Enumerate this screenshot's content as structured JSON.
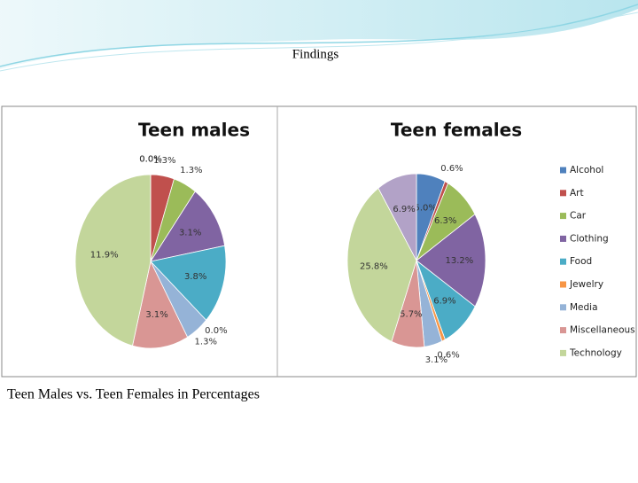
{
  "slide": {
    "title": "Findings",
    "caption": "Teen Males vs. Teen Females in Percentages"
  },
  "chart_data": [
    {
      "type": "pie",
      "title": "Teen males",
      "categories": [
        "Alcohol",
        "Art",
        "Car",
        "Clothing",
        "Food",
        "Jewelry",
        "Media",
        "Miscellaneous",
        "Technology",
        null
      ],
      "values": [
        0.0,
        1.3,
        1.3,
        3.1,
        3.8,
        0.0,
        1.3,
        3.1,
        11.9,
        0.0
      ],
      "value_labels": [
        "0.0%",
        "1.3%",
        "1.3%",
        "3.1%",
        "3.8%",
        "0.0%",
        "1.3%",
        "3.1%",
        "11.9%",
        "0.0%"
      ],
      "colors": [
        "#4f81bd",
        "#c0504d",
        "#9bbb59",
        "#8064a2",
        "#4bacc6",
        "#f79646",
        "#95b3d7",
        "#d99694",
        "#c3d69b",
        "#b2a2c7"
      ]
    },
    {
      "type": "pie",
      "title": "Teen females",
      "categories": [
        "Alcohol",
        "Art",
        "Car",
        "Clothing",
        "Food",
        "Jewelry",
        "Media",
        "Miscellaneous",
        "Technology",
        null
      ],
      "values": [
        5.0,
        0.6,
        6.3,
        13.2,
        6.9,
        0.6,
        3.1,
        5.7,
        25.8,
        6.9
      ],
      "value_labels": [
        "5.0%",
        "0.6%",
        "6.3%",
        "13.2%",
        "6.9%",
        "0.6%",
        "3.1%",
        "5.7%",
        "25.8%",
        "6.9%"
      ],
      "colors": [
        "#4f81bd",
        "#c0504d",
        "#9bbb59",
        "#8064a2",
        "#4bacc6",
        "#f79646",
        "#95b3d7",
        "#d99694",
        "#c3d69b",
        "#b2a2c7"
      ],
      "legend": "right"
    }
  ]
}
